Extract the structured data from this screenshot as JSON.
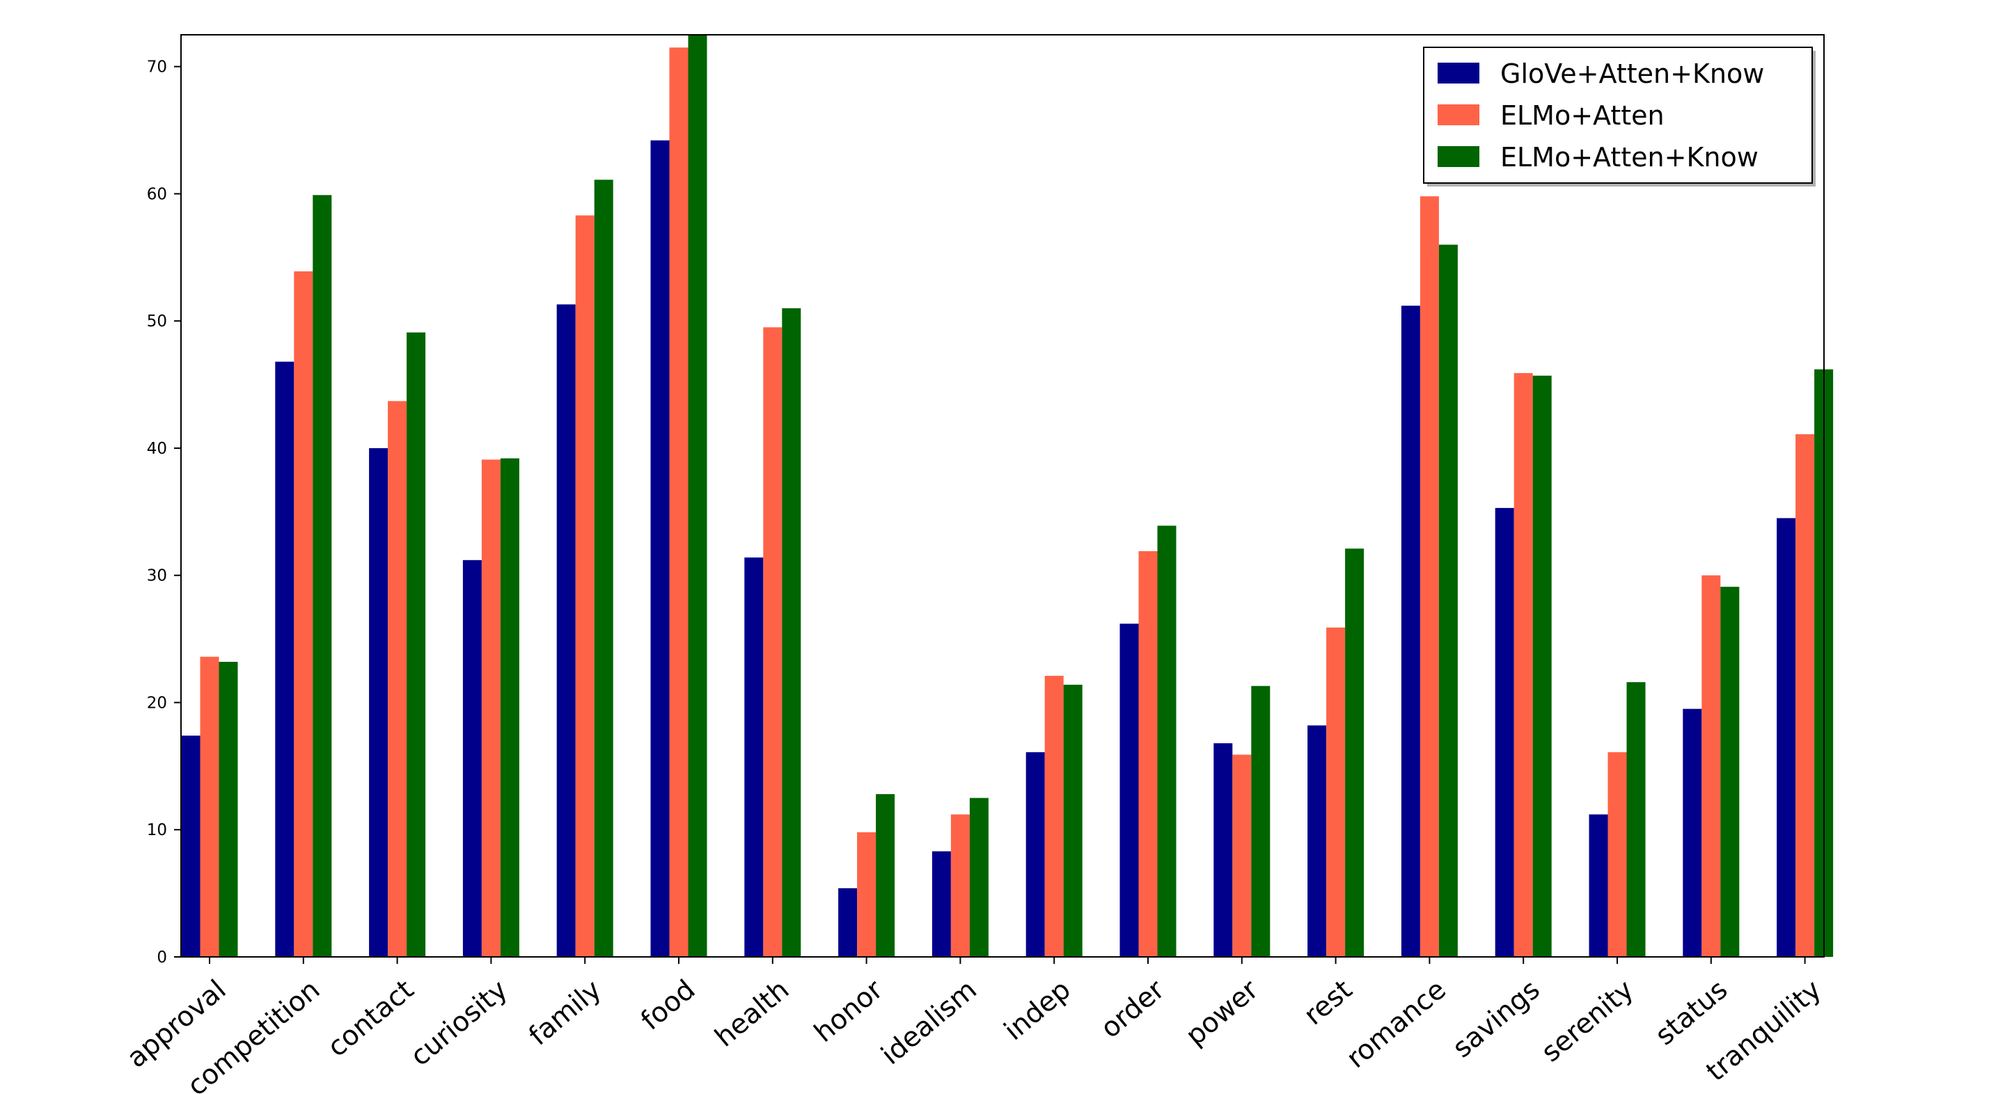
{
  "chart_data": {
    "type": "bar",
    "title": "",
    "xlabel": "",
    "ylabel": "",
    "ylim": [
      0,
      72.5
    ],
    "yticks": [
      0,
      10,
      20,
      30,
      40,
      50,
      60,
      70
    ],
    "grid": false,
    "legend_position": "top-right",
    "categories": [
      "approval",
      "competition",
      "contact",
      "curiosity",
      "family",
      "food",
      "health",
      "honor",
      "idealism",
      "indep",
      "order",
      "power",
      "rest",
      "romance",
      "savings",
      "serenity",
      "status",
      "tranquility"
    ],
    "series": [
      {
        "name": "GloVe+Atten+Know",
        "color": "#00008b",
        "values": [
          17.4,
          46.8,
          40.0,
          31.2,
          51.3,
          64.2,
          31.4,
          5.4,
          8.3,
          16.1,
          26.2,
          16.8,
          18.2,
          51.2,
          35.3,
          11.2,
          19.5,
          34.5
        ]
      },
      {
        "name": "ELMo+Atten",
        "color": "#ff6347",
        "values": [
          23.6,
          53.9,
          43.7,
          39.1,
          58.3,
          71.5,
          49.5,
          9.8,
          11.2,
          22.1,
          31.9,
          15.9,
          25.9,
          59.8,
          45.9,
          16.1,
          30.0,
          41.1
        ]
      },
      {
        "name": "ELMo+Atten+Know",
        "color": "#006400",
        "values": [
          23.2,
          59.9,
          49.1,
          39.2,
          61.1,
          72.5,
          51.0,
          12.8,
          12.5,
          21.4,
          33.9,
          21.3,
          32.1,
          56.0,
          45.7,
          21.6,
          29.1,
          46.2
        ]
      }
    ]
  }
}
